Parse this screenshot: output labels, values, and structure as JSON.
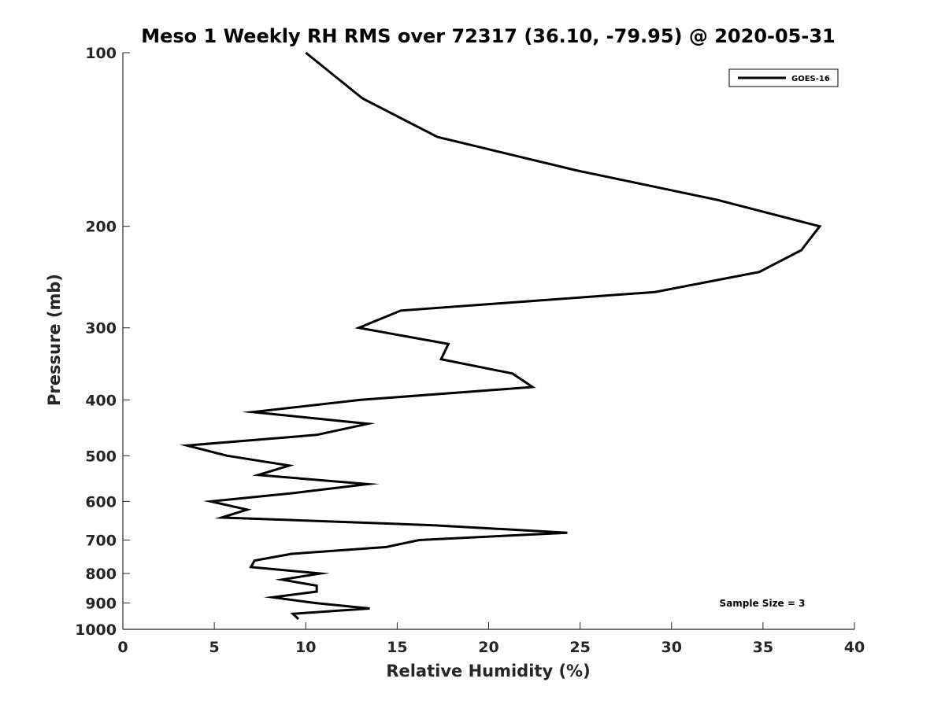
{
  "chart_data": {
    "type": "line",
    "title": "Meso 1 Weekly RH RMS over 72317 (36.10, -79.95) @ 2020-05-31",
    "xlabel": "Relative Humidity (%)",
    "ylabel": "Pressure (mb)",
    "xlim": [
      0,
      40
    ],
    "ylim": [
      100,
      1000
    ],
    "y_scale": "log",
    "y_reversed": true,
    "xticks": [
      0,
      5,
      10,
      15,
      20,
      25,
      30,
      35,
      40
    ],
    "yticks": [
      100,
      200,
      300,
      400,
      500,
      600,
      700,
      800,
      900,
      1000
    ],
    "grid": false,
    "legend_position": "top-right",
    "annotation": "Sample Size = 3",
    "series": [
      {
        "name": "GOES-16",
        "color": "#000000",
        "x": [
          10.0,
          13.1,
          17.2,
          24.8,
          32.5,
          38.1,
          37.1,
          34.8,
          29.1,
          15.2,
          12.9,
          17.8,
          17.4,
          21.3,
          22.4,
          13.0,
          7.1,
          13.4,
          10.6,
          3.5,
          5.7,
          9.1,
          7.4,
          13.4,
          9.4,
          4.8,
          6.8,
          5.4,
          17.0,
          24.3,
          16.2,
          14.4,
          9.2,
          7.2,
          7.0,
          10.8,
          8.7,
          10.6,
          10.6,
          8.2,
          10.5,
          13.5,
          9.3,
          9.6
        ],
        "y": [
          100,
          120,
          140,
          160,
          180,
          200,
          220,
          240,
          260,
          280,
          300,
          320,
          340,
          360,
          380,
          400,
          420,
          440,
          460,
          480,
          500,
          520,
          540,
          560,
          580,
          600,
          620,
          640,
          660,
          680,
          700,
          720,
          740,
          760,
          780,
          800,
          820,
          840,
          860,
          880,
          900,
          920,
          940,
          960
        ]
      }
    ]
  }
}
